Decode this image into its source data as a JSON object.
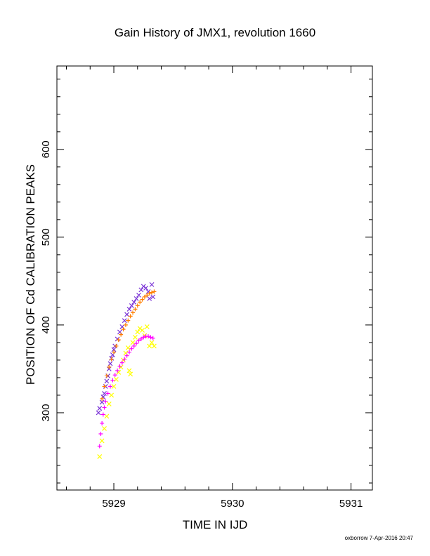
{
  "chart_data": {
    "type": "scatter",
    "title": "Gain History of JMX1, revolution 1660",
    "xlabel": "TIME IN IJD",
    "ylabel": "POSITION OF Cd CALIBRATION PEAKS",
    "xlim": [
      5928.52,
      5931.18
    ],
    "ylim": [
      212,
      695
    ],
    "x_ticks": [
      5929,
      5930,
      5931
    ],
    "y_ticks": [
      300,
      400,
      500,
      600
    ],
    "grid": false,
    "legend": "none",
    "footer": "oxborrow  7-Apr-2016 20:47",
    "series": [
      {
        "marker": "x",
        "color": "#7a33d6",
        "points": [
          [
            5928.87,
            300
          ],
          [
            5928.88,
            305
          ],
          [
            5928.9,
            312
          ],
          [
            5928.91,
            318
          ],
          [
            5928.92,
            322
          ],
          [
            5928.93,
            330
          ],
          [
            5928.94,
            336
          ],
          [
            5928.95,
            342
          ],
          [
            5928.96,
            350
          ],
          [
            5928.97,
            356
          ],
          [
            5928.98,
            362
          ],
          [
            5928.99,
            366
          ],
          [
            5929.0,
            372
          ],
          [
            5929.01,
            376
          ],
          [
            5929.03,
            384
          ],
          [
            5929.05,
            392
          ],
          [
            5929.07,
            398
          ],
          [
            5929.09,
            405
          ],
          [
            5929.11,
            412
          ],
          [
            5929.13,
            418
          ],
          [
            5929.15,
            422
          ],
          [
            5929.17,
            426
          ],
          [
            5929.19,
            430
          ],
          [
            5929.21,
            434
          ],
          [
            5929.23,
            440
          ],
          [
            5929.25,
            444
          ],
          [
            5929.27,
            442
          ],
          [
            5929.29,
            438
          ],
          [
            5929.3,
            430
          ],
          [
            5929.32,
            446
          ],
          [
            5929.33,
            432
          ]
        ]
      },
      {
        "marker": "+",
        "color": "#ff7f00",
        "points": [
          [
            5928.9,
            316
          ],
          [
            5928.92,
            330
          ],
          [
            5928.94,
            342
          ],
          [
            5928.96,
            352
          ],
          [
            5928.98,
            361
          ],
          [
            5929.0,
            369
          ],
          [
            5929.02,
            376
          ],
          [
            5929.04,
            383
          ],
          [
            5929.06,
            389
          ],
          [
            5929.08,
            395
          ],
          [
            5929.1,
            400
          ],
          [
            5929.12,
            405
          ],
          [
            5929.14,
            410
          ],
          [
            5929.16,
            414
          ],
          [
            5929.18,
            418
          ],
          [
            5929.2,
            422
          ],
          [
            5929.22,
            426
          ],
          [
            5929.24,
            429
          ],
          [
            5929.26,
            432
          ],
          [
            5929.28,
            434
          ],
          [
            5929.3,
            436
          ],
          [
            5929.32,
            437
          ],
          [
            5929.34,
            438
          ]
        ]
      },
      {
        "marker": "x",
        "color": "#ffff00",
        "points": [
          [
            5928.88,
            250
          ],
          [
            5928.9,
            268
          ],
          [
            5928.92,
            282
          ],
          [
            5928.94,
            296
          ],
          [
            5928.96,
            310
          ],
          [
            5928.98,
            320
          ],
          [
            5929.0,
            330
          ],
          [
            5929.02,
            338
          ],
          [
            5929.04,
            346
          ],
          [
            5929.06,
            352
          ],
          [
            5929.08,
            360
          ],
          [
            5929.1,
            368
          ],
          [
            5929.12,
            374
          ],
          [
            5929.13,
            348
          ],
          [
            5929.14,
            344
          ],
          [
            5929.16,
            380
          ],
          [
            5929.18,
            386
          ],
          [
            5929.2,
            392
          ],
          [
            5929.22,
            396
          ],
          [
            5929.24,
            394
          ],
          [
            5929.26,
            388
          ],
          [
            5929.28,
            398
          ],
          [
            5929.3,
            376
          ],
          [
            5929.32,
            380
          ],
          [
            5929.34,
            376
          ]
        ]
      },
      {
        "marker": "+",
        "color": "#ff00ff",
        "points": [
          [
            5928.88,
            262
          ],
          [
            5928.89,
            276
          ],
          [
            5928.9,
            288
          ],
          [
            5928.91,
            298
          ],
          [
            5928.92,
            306
          ],
          [
            5928.93,
            313
          ],
          [
            5928.95,
            322
          ],
          [
            5928.97,
            330
          ],
          [
            5928.99,
            337
          ],
          [
            5929.01,
            343
          ],
          [
            5929.03,
            348
          ],
          [
            5929.05,
            353
          ],
          [
            5929.07,
            357
          ],
          [
            5929.09,
            361
          ],
          [
            5929.11,
            365
          ],
          [
            5929.13,
            369
          ],
          [
            5929.15,
            373
          ],
          [
            5929.17,
            376
          ],
          [
            5929.19,
            379
          ],
          [
            5929.21,
            382
          ],
          [
            5929.23,
            384
          ],
          [
            5929.25,
            386
          ],
          [
            5929.27,
            387
          ],
          [
            5929.29,
            387
          ],
          [
            5929.31,
            386
          ],
          [
            5929.33,
            385
          ]
        ]
      }
    ]
  }
}
